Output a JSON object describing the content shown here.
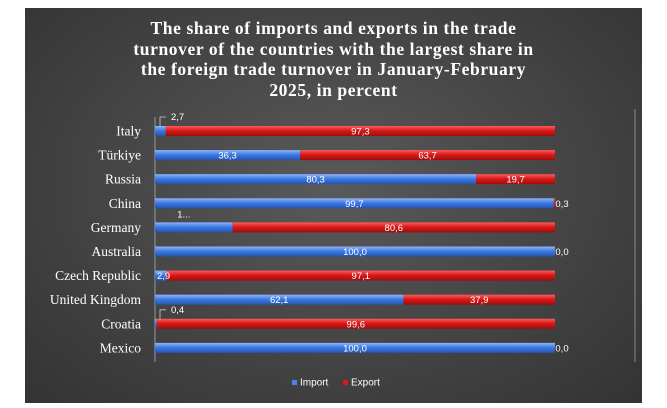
{
  "chart_data": {
    "type": "bar",
    "orientation": "horizontal",
    "stacked": "100%",
    "title_lines": [
      "The share of imports and exports in the trade",
      "turnover of the countries with the largest share in",
      "the foreign trade turnover in January-February",
      "2025, in percent"
    ],
    "categories": [
      "Italy",
      "Türkiye",
      "Russia",
      "China",
      "Germany",
      "Australia",
      "Czech Republic",
      "United Kingdom",
      "Croatia",
      "Mexico"
    ],
    "series": [
      {
        "name": "Import",
        "color": "#4a86e8",
        "values": [
          2.7,
          36.3,
          80.3,
          99.7,
          19.4,
          100.0,
          2.9,
          62.1,
          0.4,
          100.0
        ],
        "labels": [
          "2,7",
          "36,3",
          "80,3",
          "99,7",
          "1...",
          "100,0",
          "2,9",
          "62,1",
          "0,4",
          "100,0"
        ]
      },
      {
        "name": "Export",
        "color": "#d91a1a",
        "values": [
          97.3,
          63.7,
          19.7,
          0.3,
          80.6,
          0.0,
          97.1,
          37.9,
          99.6,
          0.0
        ],
        "labels": [
          "97,3",
          "63,7",
          "19,7",
          "0,3",
          "80,6",
          "0,0",
          "97,1",
          "37,9",
          "99,6",
          "0,0"
        ]
      }
    ],
    "xlim": [
      0,
      100
    ],
    "grid": false,
    "legend_position": "bottom"
  }
}
